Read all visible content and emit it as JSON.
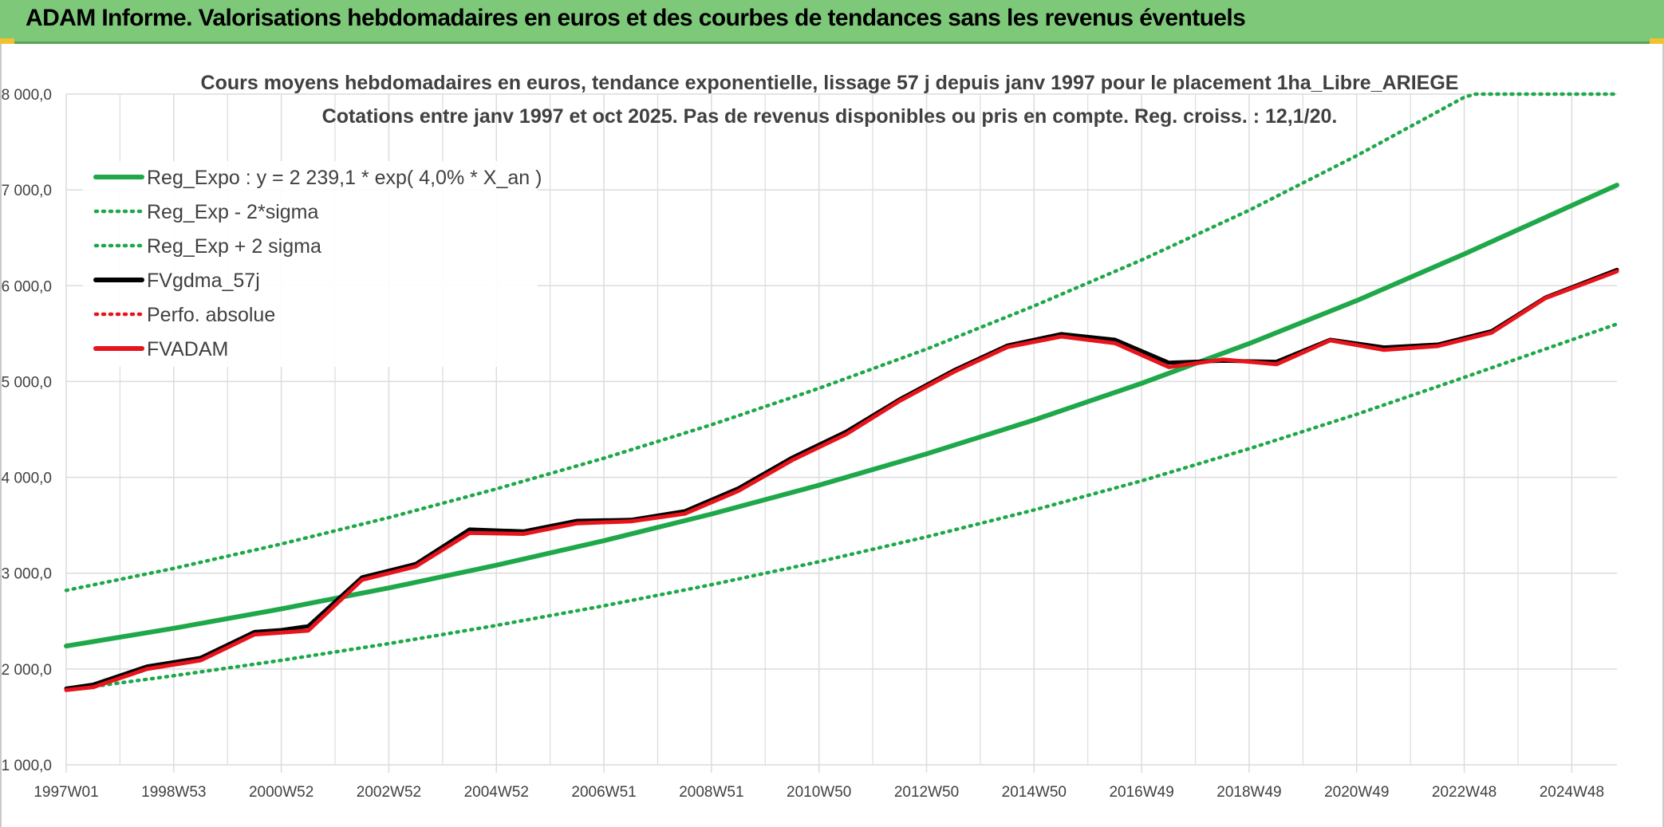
{
  "header": {
    "title": "ADAM Informe. Valorisations hebdomadaires en euros et des courbes de tendances sans les revenus éventuels"
  },
  "colors": {
    "green": "#1fa84a",
    "red": "#e8141c",
    "black": "#000000",
    "grid": "#dcdcdc",
    "header_bg": "#7ec87a"
  },
  "chart_data": {
    "type": "line",
    "title_line1": "Cours moyens hebdomadaires en euros, tendance exponentielle, lissage 57 j depuis janv 1997 pour le placement 1ha_Libre_ARIEGE",
    "title_line2": "Cotations entre janv 1997 et oct 2025. Pas de revenus disponibles ou pris en compte. Reg. croiss. : 12,1/20.",
    "xlim": [
      1997.0,
      2025.83
    ],
    "ylim": [
      1000,
      8000
    ],
    "y_ticks": [
      {
        "value": 1000,
        "label": "1 000,0"
      },
      {
        "value": 2000,
        "label": "2 000,0"
      },
      {
        "value": 3000,
        "label": "3 000,0"
      },
      {
        "value": 4000,
        "label": "4 000,0"
      },
      {
        "value": 5000,
        "label": "5 000,0"
      },
      {
        "value": 6000,
        "label": "6 000,0"
      },
      {
        "value": 7000,
        "label": "7 000,0"
      },
      {
        "value": 8000,
        "label": "8 000,0"
      }
    ],
    "x_ticks": [
      "1997W01",
      "1998W53",
      "2000W52",
      "2002W52",
      "2004W52",
      "2006W51",
      "2008W51",
      "2010W50",
      "2012W50",
      "2014W50",
      "2016W49",
      "2018W49",
      "2020W49",
      "2022W48",
      "2024W48"
    ],
    "grid": true,
    "legend_position": "top-left",
    "legend": [
      {
        "label": "Reg_Expo : y = 2 239,1 * exp( 4,0% *  X_an )",
        "style": "solid",
        "color": "#1fa84a"
      },
      {
        "label": "Reg_Exp - 2*sigma",
        "style": "dotted",
        "color": "#1fa84a"
      },
      {
        "label": "Reg_Exp + 2 sigma",
        "style": "dotted",
        "color": "#1fa84a"
      },
      {
        "label": "FVgdma_57j",
        "style": "solid",
        "color": "#000000"
      },
      {
        "label": "Perfo. absolue",
        "style": "dotted",
        "color": "#e8141c"
      },
      {
        "label": "FVADAM",
        "style": "solid",
        "color": "#e8141c"
      }
    ],
    "series": [
      {
        "name": "Reg_Expo : y = 2 239,1 * exp( 4,0% *  X_an )",
        "x": [
          1997.0,
          1999.0,
          2001.0,
          2003.0,
          2005.0,
          2007.0,
          2009.0,
          2011.0,
          2013.0,
          2015.0,
          2017.0,
          2019.0,
          2021.0,
          2023.0,
          2025.83
        ],
        "y": [
          2239,
          2425,
          2627,
          2846,
          3083,
          3340,
          3618,
          3919,
          4246,
          4600,
          4983,
          5398,
          5847,
          6334,
          7050
        ]
      },
      {
        "name": "Reg_Exp - 2*sigma",
        "x": [
          1997.0,
          1999.0,
          2001.0,
          2003.0,
          2005.0,
          2007.0,
          2009.0,
          2011.0,
          2013.0,
          2015.0,
          2017.0,
          2019.0,
          2021.0,
          2023.0,
          2025.83
        ],
        "y": [
          1780,
          1930,
          2090,
          2265,
          2455,
          2660,
          2880,
          3120,
          3380,
          3660,
          3965,
          4300,
          4660,
          5045,
          5600
        ]
      },
      {
        "name": "Reg_Exp + 2 sigma",
        "x": [
          1997.0,
          1999.0,
          2001.0,
          2003.0,
          2005.0,
          2007.0,
          2009.0,
          2011.0,
          2013.0,
          2015.0,
          2017.0,
          2019.0,
          2021.0,
          2023.0,
          2023.2,
          2025.83
        ],
        "y": [
          2820,
          3050,
          3305,
          3580,
          3880,
          4200,
          4550,
          4930,
          5340,
          5790,
          6270,
          6790,
          7360,
          7970,
          8000,
          8000
        ]
      },
      {
        "name": "FVgdma_57j",
        "x": [
          1997.0,
          1997.5,
          1998.5,
          1999.5,
          2000.5,
          2001.0,
          2001.5,
          2002.5,
          2003.5,
          2004.5,
          2005.5,
          2006.5,
          2007.5,
          2008.5,
          2009.5,
          2010.5,
          2011.5,
          2012.5,
          2013.5,
          2014.5,
          2015.5,
          2016.5,
          2017.5,
          2018.5,
          2019.5,
          2020.5,
          2021.5,
          2022.5,
          2023.5,
          2024.5,
          2025.83
        ],
        "y": [
          1780,
          1820,
          2010,
          2100,
          2370,
          2390,
          2430,
          2940,
          3080,
          3440,
          3420,
          3530,
          3540,
          3630,
          3870,
          4190,
          4460,
          4800,
          5100,
          5360,
          5480,
          5420,
          5180,
          5200,
          5190,
          5420,
          5340,
          5370,
          5510,
          5860,
          6150
        ]
      },
      {
        "name": "Perfo. absolue",
        "x": [],
        "y": []
      },
      {
        "name": "FVADAM",
        "x": [
          1997.0,
          1997.5,
          1998.5,
          1999.5,
          2000.5,
          2001.0,
          2001.5,
          2002.5,
          2003.5,
          2004.5,
          2005.5,
          2006.5,
          2007.5,
          2008.5,
          2009.5,
          2010.5,
          2011.5,
          2012.5,
          2013.5,
          2014.5,
          2015.5,
          2016.5,
          2017.5,
          2018.5,
          2019.5,
          2020.5,
          2021.5,
          2022.5,
          2023.5,
          2024.5,
          2025.83
        ],
        "y": [
          1780,
          1810,
          2000,
          2090,
          2360,
          2380,
          2400,
          2930,
          3070,
          3420,
          3410,
          3520,
          3540,
          3620,
          3860,
          4180,
          4450,
          4800,
          5100,
          5360,
          5470,
          5400,
          5150,
          5230,
          5180,
          5430,
          5330,
          5370,
          5510,
          5870,
          6150
        ]
      }
    ]
  }
}
